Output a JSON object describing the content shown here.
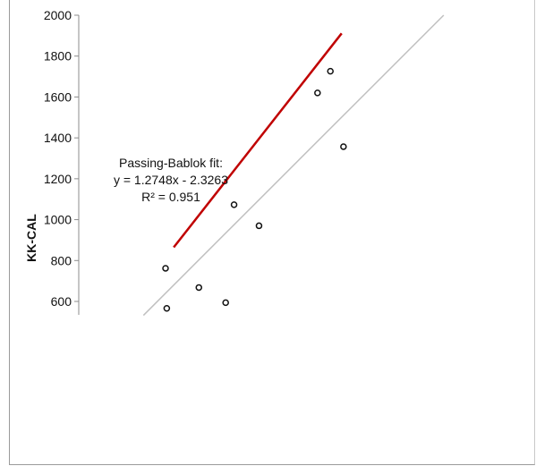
{
  "chart_data": {
    "type": "scatter",
    "title": "",
    "xlabel": "",
    "ylabel": "KK-CAL",
    "ylim": [
      530,
      2000
    ],
    "xlim": [
      320,
      1860
    ],
    "yticks": [
      "600",
      "800",
      "1000",
      "1200",
      "1400",
      "1600",
      "1800",
      "2000"
    ],
    "grid": false,
    "points": [
      {
        "x": 640,
        "y": 762
      },
      {
        "x": 646,
        "y": 566
      },
      {
        "x": 803,
        "y": 668
      },
      {
        "x": 934,
        "y": 594
      },
      {
        "x": 975,
        "y": 1073
      },
      {
        "x": 1097,
        "y": 970
      },
      {
        "x": 1383,
        "y": 1620
      },
      {
        "x": 1446,
        "y": 1726
      },
      {
        "x": 1510,
        "y": 1357
      }
    ],
    "fit_line": {
      "color": "#c00000",
      "x_start": 680,
      "x_end": 1501
    },
    "identity_line": {
      "color": "#c0c0c0",
      "x_start": 532,
      "x_end": 2000
    },
    "annotation": {
      "line1": "Passing-Bablok fit:",
      "line2": "y = 1.2748x - 2.3263",
      "line3": "R² = 0.951"
    }
  }
}
